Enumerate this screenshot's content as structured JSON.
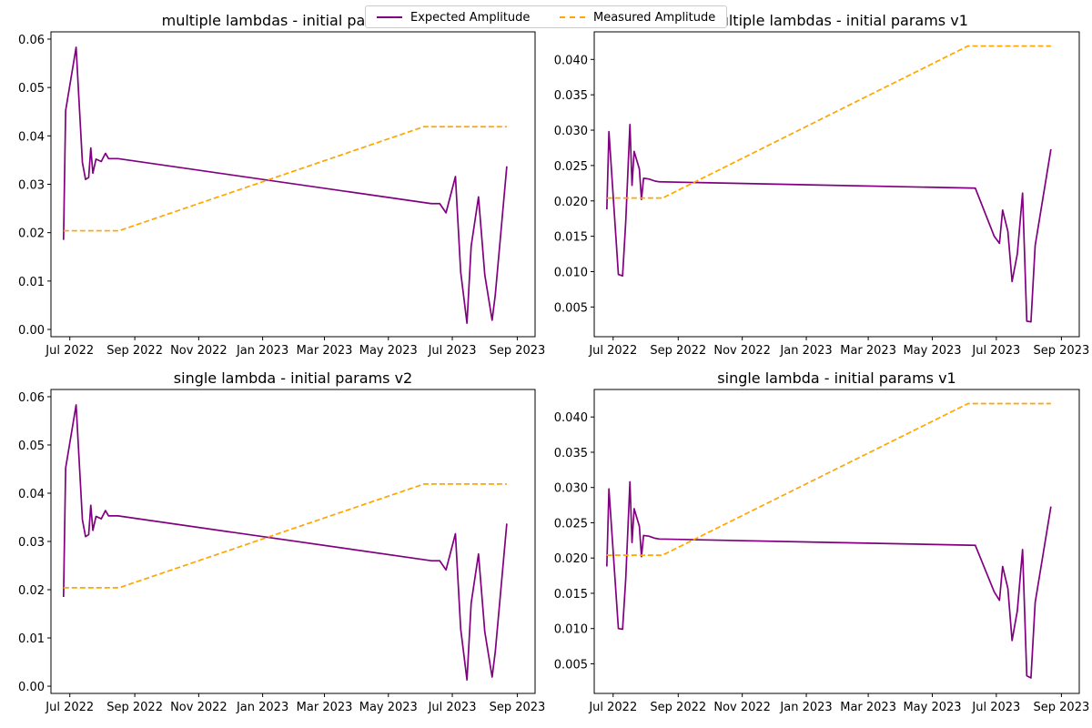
{
  "legend": {
    "expected_label": "Expected Amplitude",
    "measured_label": "Measured Amplitude"
  },
  "colors": {
    "expected": "#800080",
    "measured": "#ffa500"
  },
  "chart_data": [
    {
      "type": "line",
      "title": "multiple lambdas - initial params v2",
      "xlabel": "",
      "ylabel": "",
      "x_ticks": [
        "Jul 2022",
        "Sep 2022",
        "Nov 2022",
        "Jan 2023",
        "Mar 2023",
        "May 2023",
        "Jul 2023",
        "Sep 2023"
      ],
      "xlim": [
        "2022-06-13",
        "2023-09-18"
      ],
      "y_ticks": [
        "0.00",
        "0.01",
        "0.02",
        "0.03",
        "0.04",
        "0.05",
        "0.06"
      ],
      "ylim": [
        -0.0015,
        0.0615
      ],
      "series": [
        {
          "name": "Expected Amplitude",
          "style": "solid",
          "x": [
            "2022-06-25",
            "2022-06-27",
            "2022-07-07",
            "2022-07-13",
            "2022-07-16",
            "2022-07-19",
            "2022-07-21",
            "2022-07-23",
            "2022-07-26",
            "2022-07-31",
            "2022-08-04",
            "2022-08-07",
            "2022-08-10",
            "2022-08-16",
            "2023-06-11",
            "2023-06-19",
            "2023-06-25",
            "2023-07-04",
            "2023-07-09",
            "2023-07-15",
            "2023-07-19",
            "2023-07-26",
            "2023-08-01",
            "2023-08-08",
            "2023-08-11",
            "2023-08-22"
          ],
          "values": [
            0.0185,
            0.0452,
            0.0583,
            0.0345,
            0.031,
            0.0314,
            0.0375,
            0.0323,
            0.0352,
            0.0347,
            0.0364,
            0.0353,
            0.0353,
            0.0353,
            0.026,
            0.026,
            0.0241,
            0.0316,
            0.0119,
            0.0013,
            0.0172,
            0.0274,
            0.0113,
            0.0019,
            0.0071,
            0.0337
          ]
        },
        {
          "name": "Measured Amplitude",
          "style": "dashed",
          "x": [
            "2022-06-25",
            "2022-08-17",
            "2023-06-04",
            "2023-08-22"
          ],
          "values": [
            0.0204,
            0.0204,
            0.0419,
            0.0419
          ]
        }
      ]
    },
    {
      "type": "line",
      "title": "multiple lambdas - initial params v1",
      "xlabel": "",
      "ylabel": "",
      "x_ticks": [
        "Jul 2022",
        "Sep 2022",
        "Nov 2022",
        "Jan 2023",
        "Mar 2023",
        "May 2023",
        "Jul 2023",
        "Sep 2023"
      ],
      "xlim": [
        "2022-06-13",
        "2023-09-18"
      ],
      "y_ticks": [
        "0.005",
        "0.010",
        "0.015",
        "0.020",
        "0.025",
        "0.030",
        "0.035",
        "0.040"
      ],
      "ylim": [
        0.0008,
        0.0439
      ],
      "series": [
        {
          "name": "Expected Amplitude",
          "style": "solid",
          "x": [
            "2022-06-25",
            "2022-06-27",
            "2022-07-06",
            "2022-07-10",
            "2022-07-13",
            "2022-07-17",
            "2022-07-19",
            "2022-07-21",
            "2022-07-26",
            "2022-07-28",
            "2022-07-30",
            "2022-08-04",
            "2022-08-10",
            "2022-08-14",
            "2023-06-11",
            "2023-06-29",
            "2023-07-04",
            "2023-07-07",
            "2023-07-12",
            "2023-07-16",
            "2023-07-21",
            "2023-07-26",
            "2023-07-30",
            "2023-08-03",
            "2023-08-07",
            "2023-08-22"
          ],
          "values": [
            0.0188,
            0.0298,
            0.0096,
            0.0094,
            0.017,
            0.0308,
            0.0222,
            0.027,
            0.0245,
            0.0202,
            0.0232,
            0.0231,
            0.0228,
            0.0227,
            0.0218,
            0.015,
            0.014,
            0.0187,
            0.0157,
            0.0086,
            0.0125,
            0.0211,
            0.003,
            0.0029,
            0.0137,
            0.0273
          ]
        },
        {
          "name": "Measured Amplitude",
          "style": "dashed",
          "x": [
            "2022-06-25",
            "2022-08-17",
            "2023-06-04",
            "2023-08-22"
          ],
          "values": [
            0.0204,
            0.0204,
            0.0419,
            0.0419
          ]
        }
      ]
    },
    {
      "type": "line",
      "title": "single lambda - initial params v2",
      "xlabel": "",
      "ylabel": "",
      "x_ticks": [
        "Jul 2022",
        "Sep 2022",
        "Nov 2022",
        "Jan 2023",
        "Mar 2023",
        "May 2023",
        "Jul 2023",
        "Sep 2023"
      ],
      "xlim": [
        "2022-06-13",
        "2023-09-18"
      ],
      "y_ticks": [
        "0.00",
        "0.01",
        "0.02",
        "0.03",
        "0.04",
        "0.05",
        "0.06"
      ],
      "ylim": [
        -0.0015,
        0.0615
      ],
      "series": [
        {
          "name": "Expected Amplitude",
          "style": "solid",
          "x": [
            "2022-06-25",
            "2022-06-27",
            "2022-07-07",
            "2022-07-13",
            "2022-07-16",
            "2022-07-19",
            "2022-07-21",
            "2022-07-23",
            "2022-07-26",
            "2022-07-31",
            "2022-08-04",
            "2022-08-07",
            "2022-08-10",
            "2022-08-16",
            "2023-06-11",
            "2023-06-19",
            "2023-06-25",
            "2023-07-04",
            "2023-07-09",
            "2023-07-15",
            "2023-07-19",
            "2023-07-26",
            "2023-08-01",
            "2023-08-08",
            "2023-08-11",
            "2023-08-22"
          ],
          "values": [
            0.0185,
            0.0452,
            0.0583,
            0.0345,
            0.031,
            0.0314,
            0.0375,
            0.0323,
            0.0352,
            0.0347,
            0.0364,
            0.0353,
            0.0353,
            0.0353,
            0.026,
            0.026,
            0.0241,
            0.0316,
            0.0119,
            0.0013,
            0.0172,
            0.0274,
            0.0113,
            0.0019,
            0.0071,
            0.0337
          ]
        },
        {
          "name": "Measured Amplitude",
          "style": "dashed",
          "x": [
            "2022-06-25",
            "2022-08-17",
            "2023-06-04",
            "2023-08-22"
          ],
          "values": [
            0.0204,
            0.0204,
            0.0419,
            0.0419
          ]
        }
      ]
    },
    {
      "type": "line",
      "title": "single lambda - initial params v1",
      "xlabel": "",
      "ylabel": "",
      "x_ticks": [
        "Jul 2022",
        "Sep 2022",
        "Nov 2022",
        "Jan 2023",
        "Mar 2023",
        "May 2023",
        "Jul 2023",
        "Sep 2023"
      ],
      "xlim": [
        "2022-06-13",
        "2023-09-18"
      ],
      "y_ticks": [
        "0.005",
        "0.010",
        "0.015",
        "0.020",
        "0.025",
        "0.030",
        "0.035",
        "0.040"
      ],
      "ylim": [
        0.0008,
        0.0439
      ],
      "series": [
        {
          "name": "Expected Amplitude",
          "style": "solid",
          "x": [
            "2022-06-25",
            "2022-06-27",
            "2022-07-06",
            "2022-07-10",
            "2022-07-13",
            "2022-07-17",
            "2022-07-19",
            "2022-07-21",
            "2022-07-26",
            "2022-07-28",
            "2022-07-30",
            "2022-08-04",
            "2022-08-10",
            "2022-08-14",
            "2023-06-11",
            "2023-06-29",
            "2023-07-04",
            "2023-07-07",
            "2023-07-12",
            "2023-07-16",
            "2023-07-21",
            "2023-07-26",
            "2023-07-30",
            "2023-08-03",
            "2023-08-07",
            "2023-08-22"
          ],
          "values": [
            0.0188,
            0.0298,
            0.01,
            0.0099,
            0.017,
            0.0308,
            0.0222,
            0.027,
            0.0245,
            0.0202,
            0.0232,
            0.0231,
            0.0228,
            0.0227,
            0.0218,
            0.0152,
            0.014,
            0.0188,
            0.0157,
            0.0083,
            0.0125,
            0.0212,
            0.0033,
            0.003,
            0.0137,
            0.0273
          ]
        },
        {
          "name": "Measured Amplitude",
          "style": "dashed",
          "x": [
            "2022-06-25",
            "2022-08-17",
            "2023-06-04",
            "2023-08-22"
          ],
          "values": [
            0.0204,
            0.0204,
            0.0419,
            0.0419
          ]
        }
      ]
    }
  ]
}
